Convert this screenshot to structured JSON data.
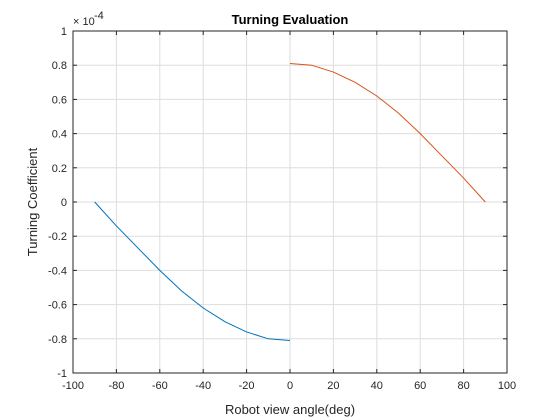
{
  "chart_data": {
    "type": "line",
    "title": "Turning Evaluation",
    "xlabel": "Robot view angle(deg)",
    "ylabel": "Turning Coefficient",
    "y_exponent_label": "× 10",
    "y_exponent_power": "-4",
    "xlim": [
      -100,
      100
    ],
    "ylim": [
      -1,
      1
    ],
    "x_ticks": [
      -100,
      -80,
      -60,
      -40,
      -20,
      0,
      20,
      40,
      60,
      80,
      100
    ],
    "y_ticks": [
      -1,
      -0.8,
      -0.6,
      -0.4,
      -0.2,
      0,
      0.2,
      0.4,
      0.6,
      0.8,
      1
    ],
    "x_tick_labels": [
      "-100",
      "-80",
      "-60",
      "-40",
      "-20",
      "0",
      "20",
      "40",
      "60",
      "80",
      "100"
    ],
    "y_tick_labels": [
      "-1",
      "-0.8",
      "-0.6",
      "-0.4",
      "-0.2",
      "0",
      "0.2",
      "0.4",
      "0.6",
      "0.8",
      "1"
    ],
    "grid": true,
    "box": true,
    "series": [
      {
        "color": "#0072bd",
        "x": [
          -90,
          -80,
          -70,
          -60,
          -50,
          -40,
          -30,
          -20,
          -10,
          0
        ],
        "y": [
          0,
          -0.14,
          -0.27,
          -0.4,
          -0.52,
          -0.62,
          -0.7,
          -0.76,
          -0.8,
          -0.81
        ]
      },
      {
        "color": "#d95319",
        "x": [
          0,
          10,
          20,
          30,
          40,
          50,
          60,
          70,
          80,
          90
        ],
        "y": [
          0.81,
          0.8,
          0.76,
          0.7,
          0.62,
          0.52,
          0.4,
          0.27,
          0.14,
          0
        ]
      }
    ]
  }
}
